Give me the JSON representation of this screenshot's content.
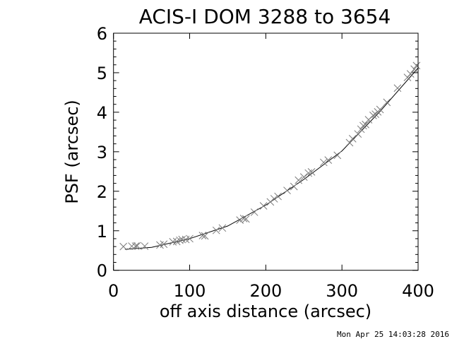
{
  "chart_data": {
    "type": "scatter",
    "title": "ACIS-I DOM 3288 to 3654",
    "xlabel": "off axis distance (arcsec)",
    "ylabel": "PSF (arcsec)",
    "xlim": [
      0,
      400
    ],
    "ylim": [
      0,
      6
    ],
    "xticks": [
      "0",
      "100",
      "200",
      "300",
      "400"
    ],
    "yticks": [
      "0",
      "1",
      "2",
      "3",
      "4",
      "5",
      "6"
    ],
    "grid": false,
    "marker": "x",
    "marker_color": "#7a7a7a",
    "line_color": "#000000",
    "points": [
      [
        13,
        0.6
      ],
      [
        24,
        0.61
      ],
      [
        29,
        0.61
      ],
      [
        31,
        0.62
      ],
      [
        41,
        0.61
      ],
      [
        61,
        0.64
      ],
      [
        66,
        0.66
      ],
      [
        78,
        0.72
      ],
      [
        83,
        0.73
      ],
      [
        87,
        0.76
      ],
      [
        90,
        0.78
      ],
      [
        95,
        0.78
      ],
      [
        100,
        0.8
      ],
      [
        117,
        0.88
      ],
      [
        120,
        0.87
      ],
      [
        135,
        1.01
      ],
      [
        143,
        1.07
      ],
      [
        166,
        1.27
      ],
      [
        171,
        1.31
      ],
      [
        174,
        1.3
      ],
      [
        185,
        1.47
      ],
      [
        197,
        1.63
      ],
      [
        206,
        1.73
      ],
      [
        211,
        1.81
      ],
      [
        216,
        1.87
      ],
      [
        228,
        2.02
      ],
      [
        237,
        2.12
      ],
      [
        243,
        2.28
      ],
      [
        250,
        2.36
      ],
      [
        256,
        2.46
      ],
      [
        260,
        2.49
      ],
      [
        276,
        2.73
      ],
      [
        282,
        2.79
      ],
      [
        294,
        2.91
      ],
      [
        310,
        3.23
      ],
      [
        314,
        3.33
      ],
      [
        321,
        3.45
      ],
      [
        325,
        3.57
      ],
      [
        328,
        3.66
      ],
      [
        331,
        3.69
      ],
      [
        335,
        3.81
      ],
      [
        341,
        3.92
      ],
      [
        344,
        3.95
      ],
      [
        347,
        4.01
      ],
      [
        350,
        4.07
      ],
      [
        359,
        4.25
      ],
      [
        373,
        4.61
      ],
      [
        386,
        4.88
      ],
      [
        390,
        4.97
      ],
      [
        395,
        5.09
      ],
      [
        398,
        5.18
      ]
    ],
    "fit_line": [
      [
        15,
        0.53
      ],
      [
        50,
        0.58
      ],
      [
        100,
        0.8
      ],
      [
        150,
        1.12
      ],
      [
        200,
        1.65
      ],
      [
        250,
        2.3
      ],
      [
        300,
        3.02
      ],
      [
        350,
        4.02
      ],
      [
        400,
        5.12
      ]
    ]
  },
  "footer": {
    "timestamp": "Mon Apr 25 14:03:28 2016"
  }
}
